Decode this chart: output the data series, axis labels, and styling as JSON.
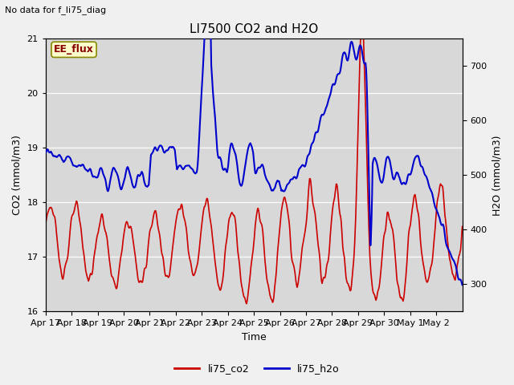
{
  "title": "LI7500 CO2 and H2O",
  "subtitle": "No data for f_li75_diag",
  "xlabel": "Time",
  "ylabel_left": "CO2 (mmol/m3)",
  "ylabel_right": "H2O (mmol/m3)",
  "annotation": "EE_flux",
  "ylim_left": [
    16.0,
    21.0
  ],
  "ylim_right": [
    250,
    750
  ],
  "xtick_labels": [
    "Apr 17",
    "Apr 18",
    "Apr 19",
    "Apr 20",
    "Apr 21",
    "Apr 22",
    "Apr 23",
    "Apr 24",
    "Apr 25",
    "Apr 26",
    "Apr 27",
    "Apr 28",
    "Apr 29",
    "Apr 30",
    "May 1",
    "May 2"
  ],
  "legend_labels": [
    "li75_co2",
    "li75_h2o"
  ],
  "co2_color": "#cc0000",
  "h2o_color": "#0000cc",
  "fig_bg_color": "#f0f0f0",
  "plot_bg_color": "#d8d8d8",
  "grid_color": "#ffffff",
  "title_fontsize": 11,
  "axis_fontsize": 9,
  "tick_fontsize": 8,
  "legend_fontsize": 9
}
